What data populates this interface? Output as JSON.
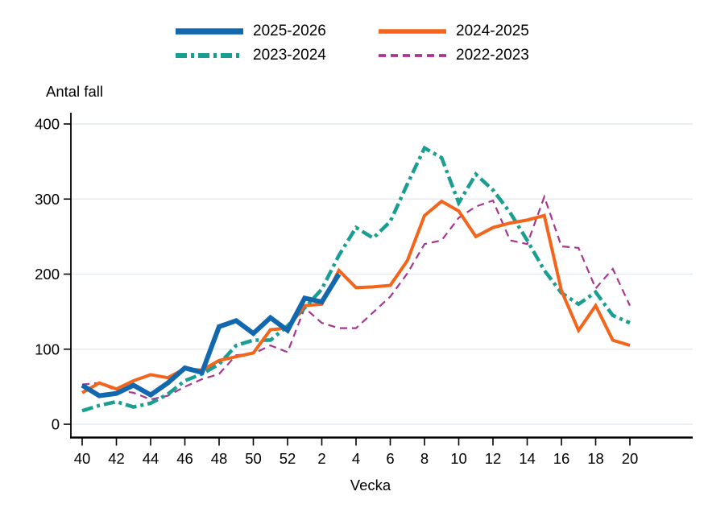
{
  "colors": {
    "background": "#ffffff",
    "gridline": "#e4ebf1",
    "axis": "#000000",
    "text": "#000000"
  },
  "chart_data": {
    "type": "line",
    "title": "",
    "ylabel": "Antal fall",
    "xlabel": "Vecka",
    "ylim": [
      0,
      400
    ],
    "y_ticks": [
      0,
      100,
      200,
      300,
      400
    ],
    "grid": "horizontal",
    "legend_position": "top",
    "x_categories": [
      "40",
      "41",
      "42",
      "43",
      "44",
      "45",
      "46",
      "47",
      "48",
      "49",
      "50",
      "51",
      "52",
      "1",
      "2",
      "3",
      "4",
      "5",
      "6",
      "7",
      "8",
      "9",
      "10",
      "11",
      "12",
      "13",
      "14",
      "15",
      "16",
      "17",
      "18",
      "19",
      "20"
    ],
    "x_ticks": [
      {
        "i": 0,
        "label": "40"
      },
      {
        "i": 2,
        "label": "42"
      },
      {
        "i": 4,
        "label": "44"
      },
      {
        "i": 6,
        "label": "46"
      },
      {
        "i": 8,
        "label": "48"
      },
      {
        "i": 10,
        "label": "50"
      },
      {
        "i": 12,
        "label": "52"
      },
      {
        "i": 14,
        "label": "2"
      },
      {
        "i": 16,
        "label": "4"
      },
      {
        "i": 18,
        "label": "6"
      },
      {
        "i": 20,
        "label": "8"
      },
      {
        "i": 22,
        "label": "10"
      },
      {
        "i": 24,
        "label": "12"
      },
      {
        "i": 26,
        "label": "14"
      },
      {
        "i": 28,
        "label": "16"
      },
      {
        "i": 30,
        "label": "18"
      },
      {
        "i": 32,
        "label": "20"
      }
    ],
    "series": [
      {
        "name": "2025-2026",
        "color": "#1268ae",
        "line_style": "solid",
        "line_width": 6,
        "values": [
          52,
          38,
          41,
          52,
          39,
          55,
          75,
          69,
          130,
          138,
          121,
          142,
          125,
          168,
          163,
          200
        ]
      },
      {
        "name": "2024-2025",
        "color": "#f4641a",
        "line_style": "solid",
        "line_width": 4,
        "values": [
          42,
          55,
          47,
          58,
          66,
          62,
          74,
          72,
          85,
          90,
          95,
          126,
          128,
          158,
          160,
          205,
          182,
          183,
          185,
          218,
          278,
          297,
          284,
          250,
          262,
          268,
          272,
          278,
          178,
          125,
          158,
          112,
          105
        ]
      },
      {
        "name": "2023-2024",
        "color": "#1a9e91",
        "line_style": "dash-dot",
        "line_width": 4.5,
        "values": [
          18,
          25,
          30,
          23,
          28,
          40,
          58,
          67,
          80,
          105,
          112,
          112,
          131,
          155,
          180,
          225,
          262,
          248,
          270,
          320,
          368,
          355,
          295,
          333,
          312,
          282,
          245,
          205,
          175,
          160,
          176,
          145,
          135
        ]
      },
      {
        "name": "2022-2023",
        "color": "#a6368f",
        "line_style": "dashed",
        "line_width": 2.2,
        "values": [
          53,
          55,
          45,
          42,
          33,
          38,
          50,
          60,
          67,
          92,
          94,
          105,
          96,
          155,
          135,
          128,
          128,
          149,
          170,
          201,
          240,
          245,
          275,
          290,
          298,
          245,
          240,
          303,
          237,
          235,
          181,
          207,
          158
        ]
      }
    ]
  }
}
